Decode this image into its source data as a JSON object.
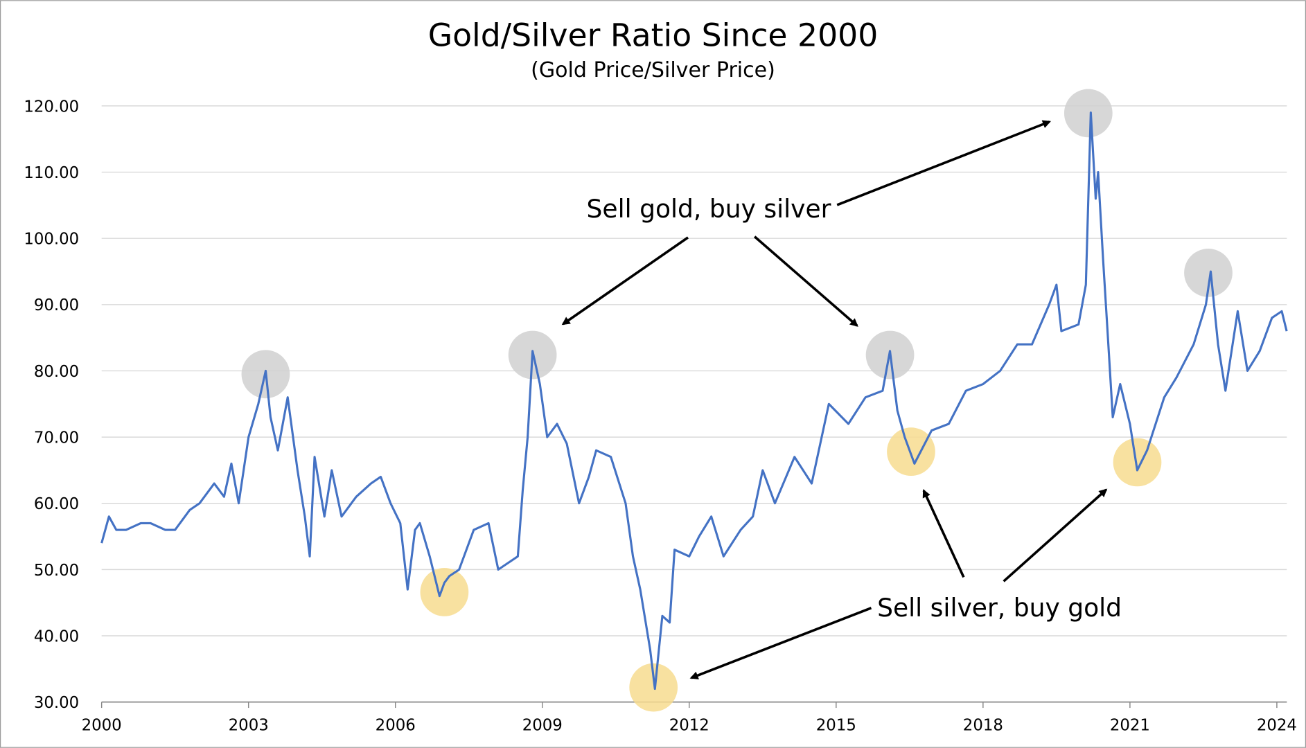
{
  "chart_data": {
    "type": "line",
    "title": "Gold/Silver Ratio Since 2000",
    "subtitle": "(Gold Price/Silver Price)",
    "xlabel": "",
    "ylabel": "",
    "xlim": [
      2000,
      2024.2
    ],
    "ylim": [
      30,
      120
    ],
    "grid": "horizontal",
    "legend": "none",
    "x_ticks": [
      "2000",
      "2003",
      "2006",
      "2009",
      "2012",
      "2015",
      "2018",
      "2021",
      "2024"
    ],
    "y_ticks": [
      "30.00",
      "40.00",
      "50.00",
      "60.00",
      "70.00",
      "80.00",
      "90.00",
      "100.00",
      "110.00",
      "120.00"
    ],
    "line_color": "#4472C4",
    "series": [
      {
        "x": [
          2000.0,
          2000.15,
          2000.3,
          2000.5,
          2000.8,
          2001.0,
          2001.3,
          2001.5,
          2001.8,
          2002.0,
          2002.3,
          2002.5,
          2002.65,
          2002.8,
          2003.0,
          2003.2,
          2003.35,
          2003.45,
          2003.6,
          2003.8,
          2004.0,
          2004.15,
          2004.25,
          2004.35,
          2004.55,
          2004.7,
          2004.9,
          2005.2,
          2005.5,
          2005.7,
          2005.9,
          2006.1,
          2006.25,
          2006.4,
          2006.5,
          2006.7,
          2006.9,
          2007.0,
          2007.1,
          2007.3,
          2007.6,
          2007.9,
          2008.1,
          2008.5,
          2008.6,
          2008.7,
          2008.8,
          2008.95,
          2009.1,
          2009.3,
          2009.5,
          2009.75,
          2009.95,
          2010.1,
          2010.4,
          2010.7,
          2010.85,
          2011.0,
          2011.2,
          2011.3,
          2011.45,
          2011.6,
          2011.7,
          2012.0,
          2012.2,
          2012.45,
          2012.7,
          2013.05,
          2013.3,
          2013.5,
          2013.75,
          2014.15,
          2014.5,
          2014.85,
          2015.25,
          2015.6,
          2015.95,
          2016.1,
          2016.25,
          2016.4,
          2016.6,
          2016.95,
          2017.3,
          2017.65,
          2018.0,
          2018.35,
          2018.7,
          2019.0,
          2019.35,
          2019.5,
          2019.6,
          2019.95,
          2020.1,
          2020.2,
          2020.3,
          2020.35,
          2020.45,
          2020.55,
          2020.65,
          2020.8,
          2021.0,
          2021.15,
          2021.35,
          2021.7,
          2021.95,
          2022.3,
          2022.55,
          2022.65,
          2022.8,
          2022.95,
          2023.2,
          2023.4,
          2023.65,
          2023.9,
          2024.1,
          2024.2
        ],
        "values": [
          54,
          58,
          56,
          56,
          57,
          57,
          56,
          56,
          59,
          60,
          63,
          61,
          66,
          60,
          70,
          75,
          80,
          73,
          68,
          76,
          65,
          58,
          52,
          67,
          58,
          65,
          58,
          61,
          63,
          64,
          60,
          57,
          47,
          56,
          57,
          52,
          46,
          48,
          49,
          50,
          56,
          57,
          50,
          52,
          62,
          70,
          83,
          78,
          70,
          72,
          69,
          60,
          64,
          68,
          67,
          60,
          52,
          47,
          38,
          32,
          43,
          42,
          53,
          52,
          55,
          58,
          52,
          56,
          58,
          65,
          60,
          67,
          63,
          75,
          72,
          76,
          77,
          83,
          74,
          70,
          66,
          71,
          72,
          77,
          78,
          80,
          84,
          84,
          90,
          93,
          86,
          87,
          93,
          119,
          106,
          110,
          97,
          85,
          73,
          78,
          72,
          65,
          68,
          76,
          79,
          84,
          90,
          95,
          84,
          77,
          89,
          80,
          83,
          88,
          89,
          86
        ]
      }
    ],
    "highlights_peak": [
      [
        2003.35,
        79.5
      ],
      [
        2008.8,
        82.4
      ],
      [
        2016.1,
        82.4
      ],
      [
        2020.15,
        118.9
      ],
      [
        2022.6,
        94.8
      ]
    ],
    "highlights_trough": [
      [
        2007.0,
        46.6
      ],
      [
        2011.27,
        32.2
      ],
      [
        2016.53,
        67.8
      ],
      [
        2021.15,
        66.2
      ]
    ],
    "highlight_colors": {
      "peak": "#d0d0d0",
      "trough": "#f7dc8f"
    },
    "annotations": [
      "Sell gold, buy silver",
      "Sell silver, buy gold"
    ]
  }
}
